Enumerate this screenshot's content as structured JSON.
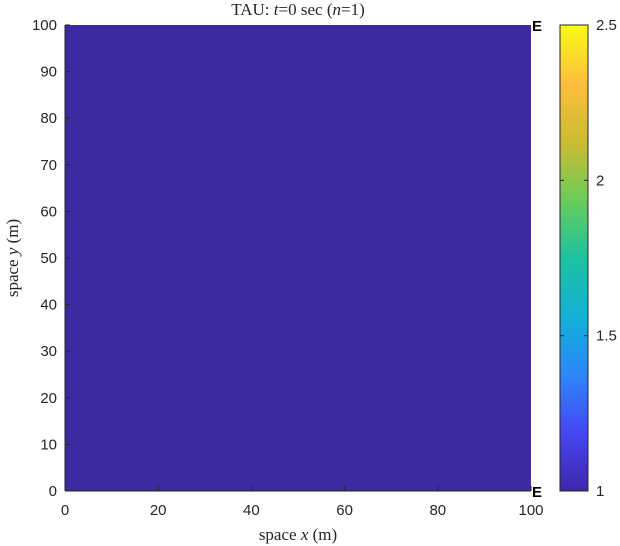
{
  "chart_data": {
    "type": "heatmap",
    "title": {
      "prefix": "TAU: ",
      "t_var": "t",
      "t_text": "=0 sec (",
      "n_var": "n",
      "n_text": "=1)"
    },
    "xlabel": {
      "prefix": "space ",
      "var": "x",
      "suffix": " (m)"
    },
    "ylabel": {
      "prefix": "space ",
      "var": "y",
      "suffix": " (m)"
    },
    "xlim": [
      0,
      100
    ],
    "ylim": [
      0,
      100
    ],
    "xticks": [
      0,
      20,
      40,
      60,
      80,
      100
    ],
    "yticks": [
      0,
      10,
      20,
      30,
      40,
      50,
      60,
      70,
      80,
      90,
      100
    ],
    "field": {
      "description_value": 1,
      "uniform_value": 1,
      "color": "#3a2ba0"
    },
    "edge_labels": [
      {
        "text": "E",
        "y": 100
      },
      {
        "text": "E",
        "y": 0
      }
    ],
    "colorbar": {
      "range": [
        1,
        2.5
      ],
      "ticks": [
        1,
        1.5,
        2,
        2.5
      ],
      "tick_labels": [
        "1",
        "1.5",
        "2",
        "2.5"
      ],
      "colormap": "parula",
      "stops": [
        "#3e26a8",
        "#4746f4",
        "#2c87fa",
        "#12b1d6",
        "#1cc2a0",
        "#6bcc5a",
        "#cdbb33",
        "#fcbf3d",
        "#f9fb15"
      ]
    },
    "grid": false
  }
}
